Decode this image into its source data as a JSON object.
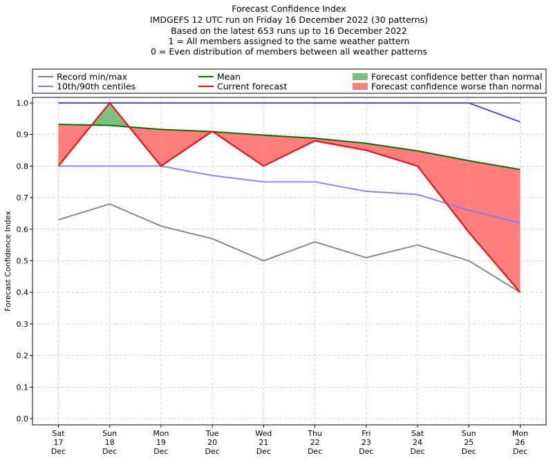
{
  "chart_data": {
    "type": "line",
    "title_lines": [
      "Forecast Confidence Index",
      "IMDGEFS 12 UTC run on Friday 16 December 2022 (30 patterns)",
      "Based on the latest 653 runs up to 16 December 2022",
      "1 = All members assigned to the same weather pattern",
      "0 = Even distribution of members between all weather patterns"
    ],
    "ylabel": "Forecast Confidence Index",
    "ylim": [
      0,
      1.0
    ],
    "yticks": [
      0.0,
      0.1,
      0.2,
      0.3,
      0.4,
      0.5,
      0.6,
      0.7,
      0.8,
      0.9,
      1.0
    ],
    "ytick_labels": [
      "0.0",
      "0.1",
      "0.2",
      "0.3",
      "0.4",
      "0.5",
      "0.6",
      "0.7",
      "0.8",
      "0.9",
      "1.0"
    ],
    "categories": [
      [
        "Sat",
        "17",
        "Dec"
      ],
      [
        "Sun",
        "18",
        "Dec"
      ],
      [
        "Mon",
        "19",
        "Dec"
      ],
      [
        "Tue",
        "20",
        "Dec"
      ],
      [
        "Wed",
        "21",
        "Dec"
      ],
      [
        "Thu",
        "22",
        "Dec"
      ],
      [
        "Fri",
        "23",
        "Dec"
      ],
      [
        "Sat",
        "24",
        "Dec"
      ],
      [
        "Sun",
        "25",
        "Dec"
      ],
      [
        "Mon",
        "26",
        "Dec"
      ]
    ],
    "grid": true,
    "legend_placement": "top, above plot",
    "legend": [
      {
        "label": "Record min/max",
        "kind": "line",
        "color": "#7f7f7f"
      },
      {
        "label": "Mean",
        "kind": "line",
        "color": "#007000"
      },
      {
        "label": "Forecast confidence better than normal",
        "kind": "patch",
        "color": "#7fbf7f"
      },
      {
        "label": "10th/90th centiles",
        "kind": "line",
        "color": "#7b7bff"
      },
      {
        "label": "Current forecast",
        "kind": "line",
        "color": "#ff0000"
      },
      {
        "label": "Forecast confidence worse than normal",
        "kind": "patch",
        "color": "#ff7f7f"
      }
    ],
    "series": [
      {
        "name": "Record min",
        "color": "#7f7f7f",
        "values": [
          0.63,
          0.68,
          0.61,
          0.57,
          0.5,
          0.56,
          0.51,
          0.55,
          0.5,
          0.4
        ]
      },
      {
        "name": "Record max",
        "color": "#7f7f7f",
        "values": [
          1.0,
          1.0,
          1.0,
          1.0,
          1.0,
          1.0,
          1.0,
          1.0,
          1.0,
          1.0
        ]
      },
      {
        "name": "10th centile",
        "color": "#7b7bff",
        "values": [
          0.8,
          0.8,
          0.8,
          0.77,
          0.75,
          0.75,
          0.72,
          0.71,
          0.66,
          0.62
        ]
      },
      {
        "name": "90th centile",
        "color": "#3a3aff",
        "values": [
          1.0,
          1.0,
          1.0,
          1.0,
          1.0,
          1.0,
          1.0,
          1.0,
          1.0,
          0.94
        ]
      },
      {
        "name": "Mean",
        "color": "#007000",
        "values": [
          0.932,
          0.929,
          0.916,
          0.909,
          0.898,
          0.888,
          0.872,
          0.848,
          0.817,
          0.789
        ]
      },
      {
        "name": "Current forecast",
        "color": "#ff0000",
        "values": [
          0.8,
          1.0,
          0.8,
          0.91,
          0.8,
          0.88,
          0.85,
          0.8,
          0.59,
          0.4
        ]
      }
    ],
    "fill_better_color": "#7fbf7f",
    "fill_worse_color": "#ff7f7f"
  }
}
